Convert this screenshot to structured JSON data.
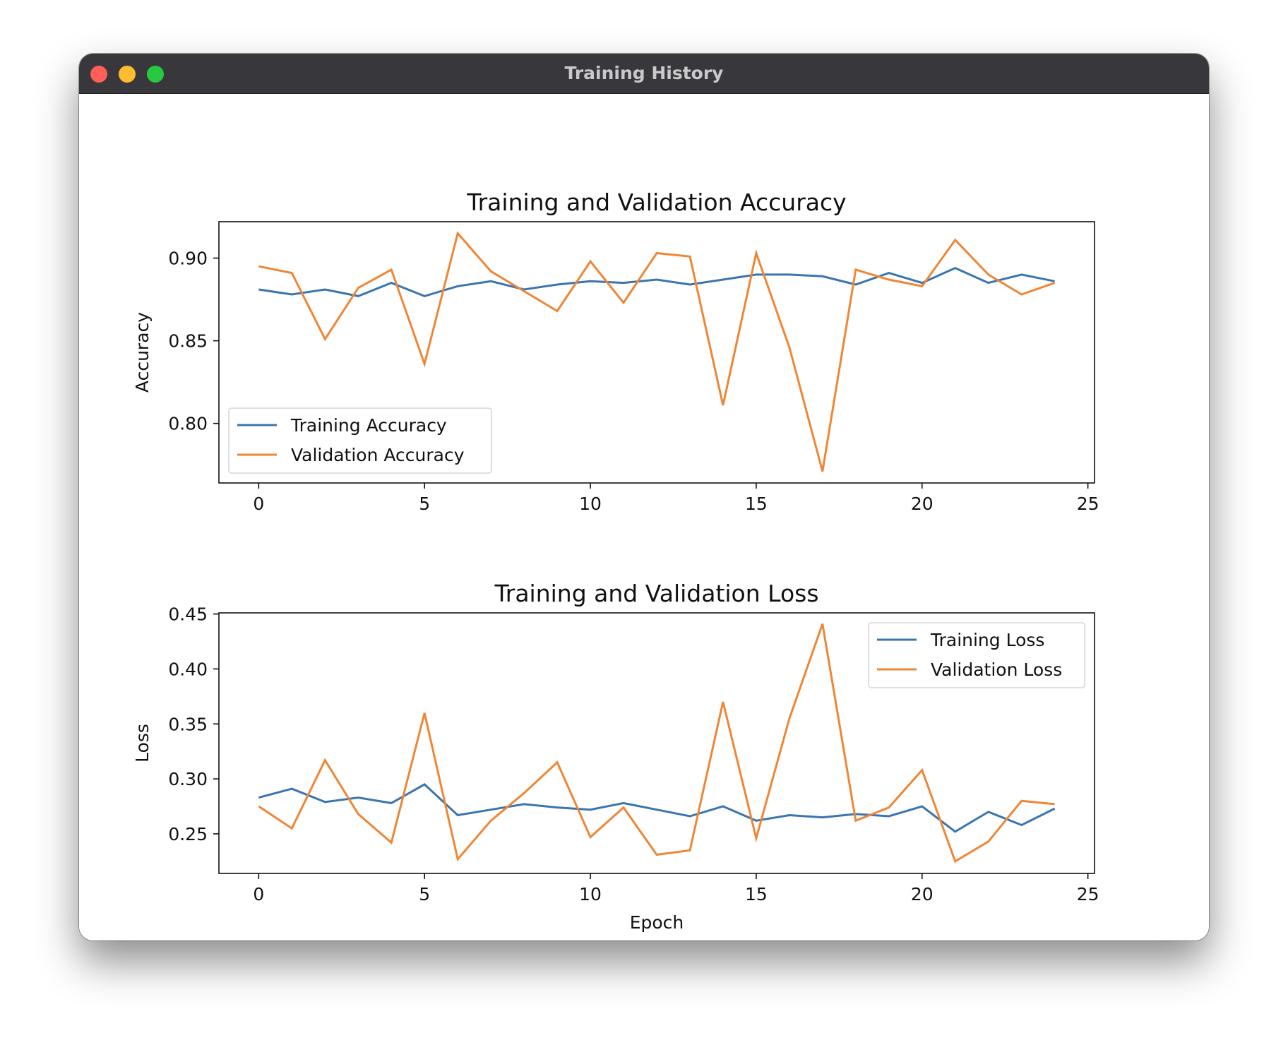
{
  "window": {
    "title": "Training History",
    "controls": [
      "close",
      "minimize",
      "zoom"
    ]
  },
  "colors": {
    "training": "#3b75af",
    "validation": "#ef8636"
  },
  "chart_data": [
    {
      "type": "line",
      "title": "Training and Validation Accuracy",
      "xlabel": "",
      "ylabel": "Accuracy",
      "xlim": [
        -1.2,
        25.2
      ],
      "ylim": [
        0.764,
        0.922
      ],
      "xticks": [
        0,
        5,
        10,
        15,
        20,
        25
      ],
      "yticks": [
        0.8,
        0.85,
        0.9
      ],
      "ytick_labels": [
        "0.80",
        "0.85",
        "0.90"
      ],
      "legend": "lower-left",
      "grid": false,
      "x": [
        0,
        1,
        2,
        3,
        4,
        5,
        6,
        7,
        8,
        9,
        10,
        11,
        12,
        13,
        14,
        15,
        16,
        17,
        18,
        19,
        20,
        21,
        22,
        23,
        24
      ],
      "series": [
        {
          "name": "Training Accuracy",
          "color": "#3b75af",
          "values": [
            0.881,
            0.878,
            0.881,
            0.877,
            0.885,
            0.877,
            0.883,
            0.886,
            0.881,
            0.884,
            0.886,
            0.885,
            0.887,
            0.884,
            0.887,
            0.89,
            0.89,
            0.889,
            0.884,
            0.891,
            0.885,
            0.894,
            0.885,
            0.89,
            0.886
          ]
        },
        {
          "name": "Validation Accuracy",
          "color": "#ef8636",
          "values": [
            0.895,
            0.891,
            0.851,
            0.882,
            0.893,
            0.836,
            0.915,
            0.892,
            0.88,
            0.868,
            0.898,
            0.873,
            0.903,
            0.901,
            0.811,
            0.903,
            0.846,
            0.771,
            0.893,
            0.887,
            0.883,
            0.911,
            0.89,
            0.878,
            0.885
          ]
        }
      ]
    },
    {
      "type": "line",
      "title": "Training and Validation Loss",
      "xlabel": "Epoch",
      "ylabel": "Loss",
      "xlim": [
        -1.2,
        25.2
      ],
      "ylim": [
        0.214,
        0.451
      ],
      "xticks": [
        0,
        5,
        10,
        15,
        20,
        25
      ],
      "yticks": [
        0.25,
        0.3,
        0.35,
        0.4,
        0.45
      ],
      "ytick_labels": [
        "0.25",
        "0.30",
        "0.35",
        "0.40",
        "0.45"
      ],
      "legend": "upper-right",
      "grid": false,
      "x": [
        0,
        1,
        2,
        3,
        4,
        5,
        6,
        7,
        8,
        9,
        10,
        11,
        12,
        13,
        14,
        15,
        16,
        17,
        18,
        19,
        20,
        21,
        22,
        23,
        24
      ],
      "series": [
        {
          "name": "Training Loss",
          "color": "#3b75af",
          "values": [
            0.283,
            0.291,
            0.279,
            0.283,
            0.278,
            0.295,
            0.267,
            0.272,
            0.277,
            0.274,
            0.272,
            0.278,
            0.272,
            0.266,
            0.275,
            0.262,
            0.267,
            0.265,
            0.268,
            0.266,
            0.275,
            0.252,
            0.27,
            0.258,
            0.273
          ]
        },
        {
          "name": "Validation Loss",
          "color": "#ef8636",
          "values": [
            0.275,
            0.255,
            0.317,
            0.268,
            0.242,
            0.36,
            0.227,
            0.262,
            0.287,
            0.315,
            0.247,
            0.274,
            0.231,
            0.235,
            0.37,
            0.246,
            0.355,
            0.441,
            0.262,
            0.274,
            0.308,
            0.225,
            0.243,
            0.28,
            0.277
          ]
        }
      ]
    }
  ]
}
